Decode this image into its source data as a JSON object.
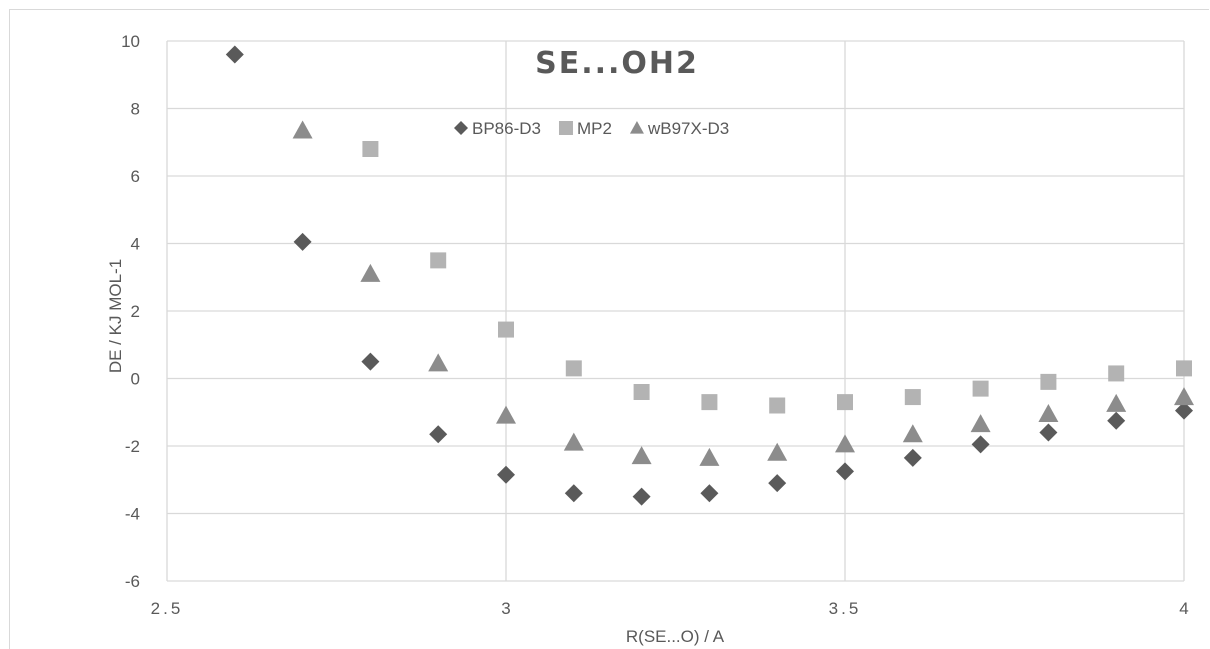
{
  "chart_data": {
    "type": "scatter",
    "title": "SE...OH2",
    "xlabel": "R(SE...O) / A",
    "ylabel": "DE / KJ MOL-1",
    "xlim": [
      2.5,
      4
    ],
    "ylim": [
      -6,
      10
    ],
    "x_ticks": [
      "2.5",
      "3",
      "3.5",
      "4"
    ],
    "y_ticks": [
      "-6",
      "-4",
      "-2",
      "0",
      "2",
      "4",
      "6",
      "8",
      "10"
    ],
    "grid": true,
    "legend_position": "top-center",
    "series": [
      {
        "name": "BP86-D3",
        "marker": "diamond",
        "color": "#5a5a5a",
        "x": [
          2.6,
          2.7,
          2.8,
          2.9,
          3.0,
          3.1,
          3.2,
          3.3,
          3.4,
          3.5,
          3.6,
          3.7,
          3.8,
          3.9,
          4.0
        ],
        "y": [
          9.6,
          4.05,
          0.5,
          -1.65,
          -2.85,
          -3.4,
          -3.5,
          -3.4,
          -3.1,
          -2.75,
          -2.35,
          -1.95,
          -1.6,
          -1.25,
          -0.95
        ]
      },
      {
        "name": "MP2",
        "marker": "square",
        "color": "#b3b3b3",
        "x": [
          2.8,
          2.9,
          3.0,
          3.1,
          3.2,
          3.3,
          3.4,
          3.5,
          3.6,
          3.7,
          3.8,
          3.9,
          4.0
        ],
        "y": [
          6.8,
          3.5,
          1.45,
          0.3,
          -0.4,
          -0.7,
          -0.8,
          -0.7,
          -0.55,
          -0.3,
          -0.1,
          0.15,
          0.3
        ]
      },
      {
        "name": "wB97X-D3",
        "marker": "triangle",
        "color": "#8c8c8c",
        "x": [
          2.7,
          2.8,
          2.9,
          3.0,
          3.1,
          3.2,
          3.3,
          3.4,
          3.5,
          3.6,
          3.7,
          3.8,
          3.9,
          4.0
        ],
        "y": [
          7.35,
          3.1,
          0.45,
          -1.1,
          -1.9,
          -2.3,
          -2.35,
          -2.2,
          -1.95,
          -1.65,
          -1.35,
          -1.05,
          -0.75,
          -0.55
        ]
      }
    ]
  }
}
